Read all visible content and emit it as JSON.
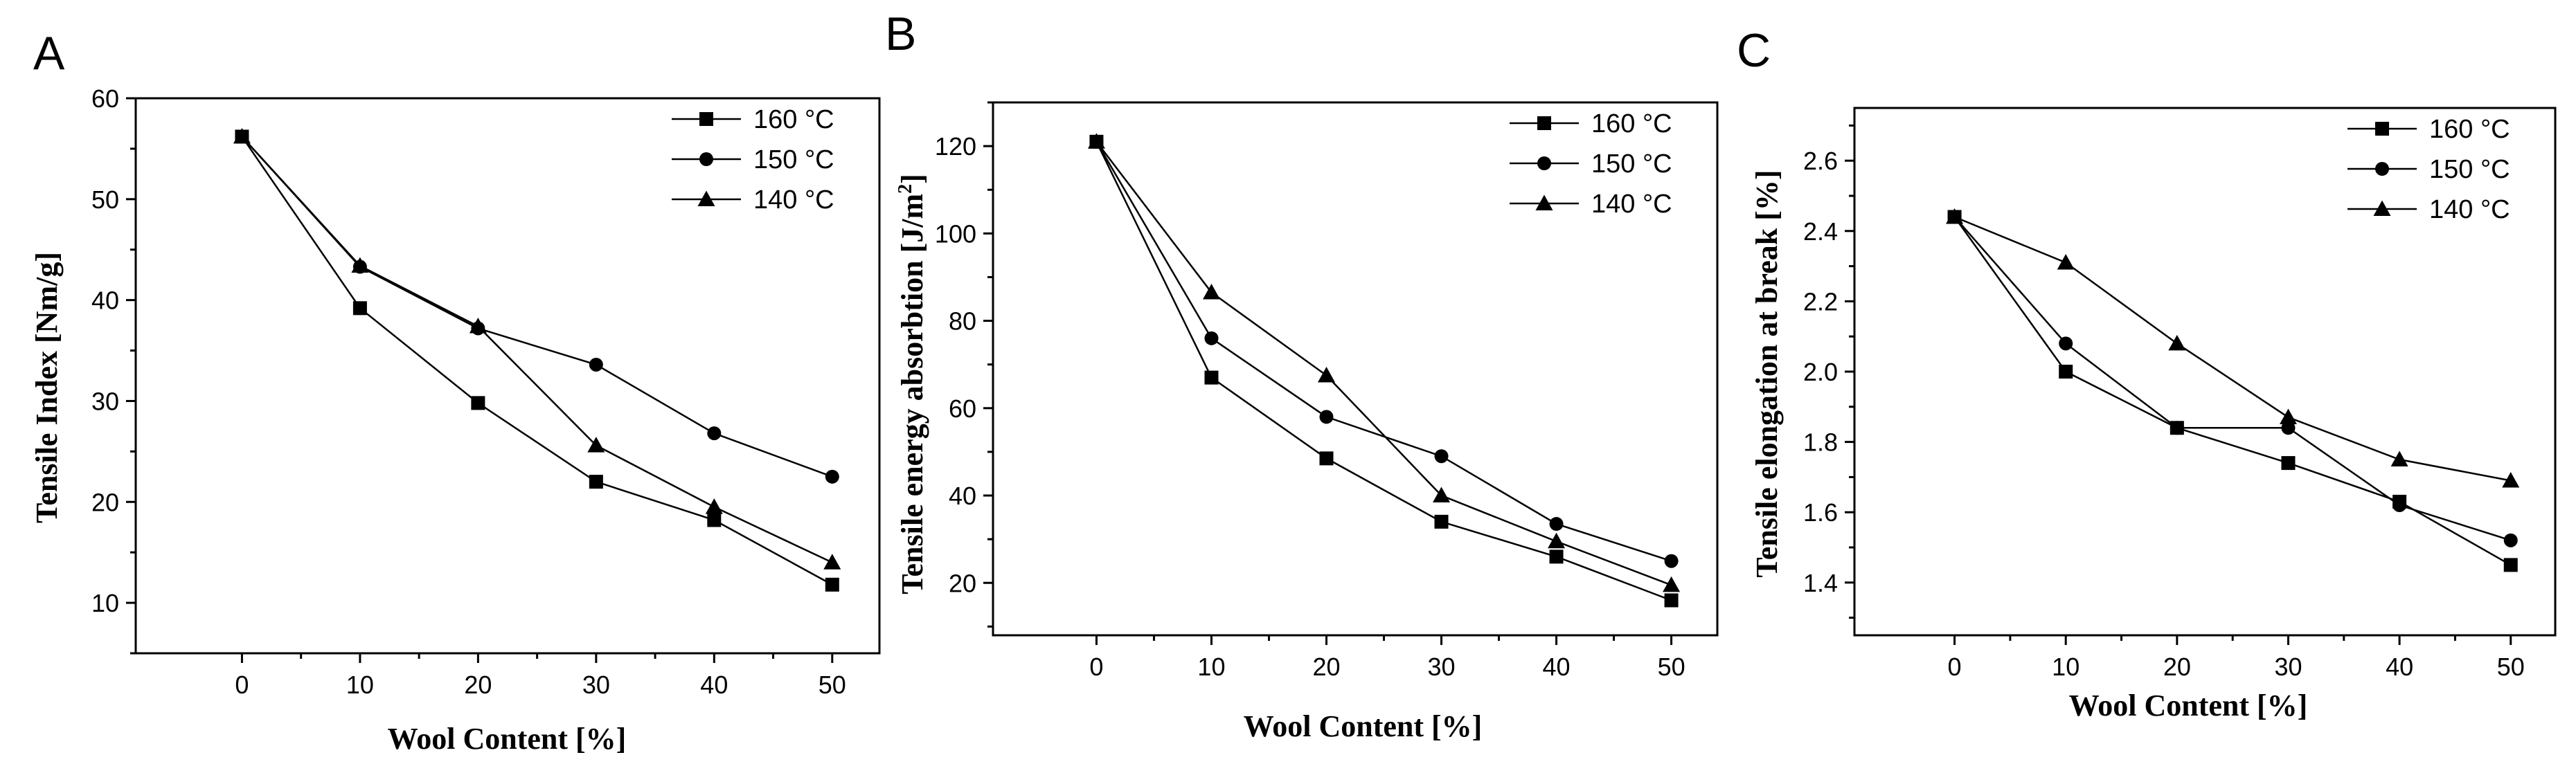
{
  "chart_data": [
    {
      "panel": "A",
      "type": "line",
      "xlabel": "Wool Content [%]",
      "ylabel": "Tensile Index [Nm/g]",
      "x": [
        0,
        10,
        20,
        30,
        40,
        50
      ],
      "xlim": [
        -9,
        54
      ],
      "ylim": [
        5,
        60
      ],
      "xticks": [
        0,
        10,
        20,
        30,
        40,
        50
      ],
      "yticks": [
        10,
        20,
        30,
        40,
        50,
        60
      ],
      "legend_position": "top-right",
      "series": [
        {
          "name": "160 °C",
          "marker": "square",
          "values": [
            56.2,
            39.2,
            29.8,
            22.0,
            18.2,
            11.8
          ]
        },
        {
          "name": "150 °C",
          "marker": "circle",
          "values": [
            56.2,
            43.3,
            37.2,
            33.6,
            26.8,
            22.5
          ]
        },
        {
          "name": "140 °C",
          "marker": "triangle",
          "values": [
            56.2,
            43.4,
            37.4,
            25.6,
            19.5,
            14.0
          ]
        }
      ]
    },
    {
      "panel": "B",
      "type": "line",
      "xlabel": "Wool Content [%]",
      "ylabel": "Tensile energy absorbtion [J/m",
      "ylabel_sup": "2",
      "ylabel_end": "]",
      "x": [
        0,
        10,
        20,
        30,
        40,
        50
      ],
      "xlim": [
        -9,
        54
      ],
      "ylim": [
        8,
        130
      ],
      "xticks": [
        0,
        10,
        20,
        30,
        40,
        50
      ],
      "yticks": [
        20,
        40,
        60,
        80,
        100,
        120
      ],
      "legend_position": "top-right",
      "series": [
        {
          "name": "160 °C",
          "marker": "square",
          "values": [
            121,
            67,
            48.5,
            34,
            26,
            16
          ]
        },
        {
          "name": "150 °C",
          "marker": "circle",
          "values": [
            121,
            76,
            58,
            49,
            33.5,
            25
          ]
        },
        {
          "name": "140 °C",
          "marker": "triangle",
          "values": [
            121,
            86.5,
            67.5,
            40,
            29.5,
            19.5
          ]
        }
      ]
    },
    {
      "panel": "C",
      "type": "line",
      "xlabel": "Wool Content [%]",
      "ylabel": "Tensile elongation at break [%]",
      "x": [
        0,
        10,
        20,
        30,
        40,
        50
      ],
      "xlim": [
        -9,
        54
      ],
      "ylim": [
        1.25,
        2.75
      ],
      "xticks": [
        0,
        10,
        20,
        30,
        40,
        50
      ],
      "yticks": [
        1.4,
        1.6,
        1.8,
        2.0,
        2.2,
        2.4,
        2.6
      ],
      "ytick_format": 1,
      "legend_position": "top-right",
      "series": [
        {
          "name": "160 °C",
          "marker": "square",
          "values": [
            2.44,
            2.0,
            1.84,
            1.74,
            1.63,
            1.45
          ]
        },
        {
          "name": "150 °C",
          "marker": "circle",
          "values": [
            2.44,
            2.08,
            1.84,
            1.84,
            1.62,
            1.52
          ]
        },
        {
          "name": "140 °C",
          "marker": "triangle",
          "values": [
            2.44,
            2.31,
            2.08,
            1.87,
            1.75,
            1.69
          ]
        }
      ]
    }
  ]
}
